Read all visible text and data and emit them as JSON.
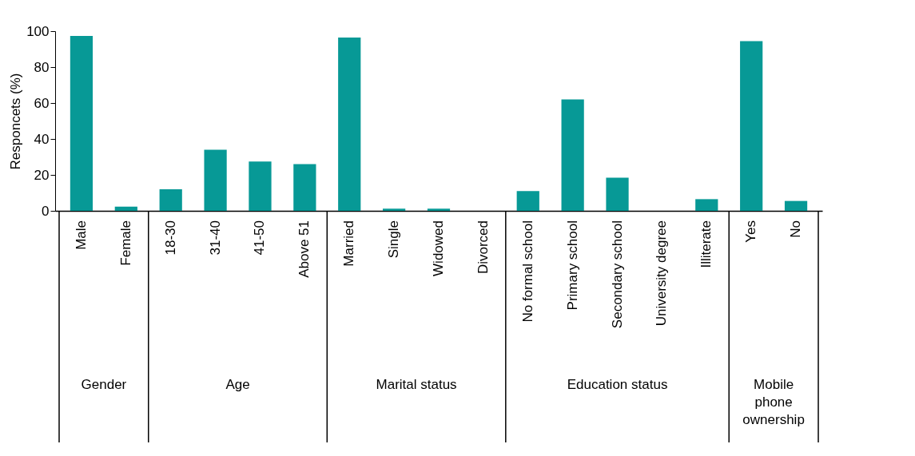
{
  "chart_data": {
    "type": "bar",
    "ylabel": "Responcets (%)",
    "categories": [
      "Male",
      "Female",
      "18-30",
      "31-40",
      "41-50",
      "Above 51",
      "Married",
      "Single",
      "Widowed",
      "Divorced",
      "No formal school",
      "Primary school",
      "Secondary school",
      "University degree",
      "Illiterate",
      "Yes",
      "No"
    ],
    "values": [
      97.3,
      2.3,
      12,
      34,
      27.5,
      26,
      96.4,
      1.2,
      1.2,
      0,
      11,
      62,
      18.5,
      0,
      6.5,
      94.5,
      5.5
    ],
    "color": "#079996",
    "ylim": [
      0,
      100
    ],
    "yticks": [
      0,
      20,
      40,
      60,
      80,
      100
    ],
    "grid": false,
    "annotations": [
      "Gender",
      "Age",
      "Marital status",
      "Education status",
      "Mobile phone ownership"
    ]
  }
}
